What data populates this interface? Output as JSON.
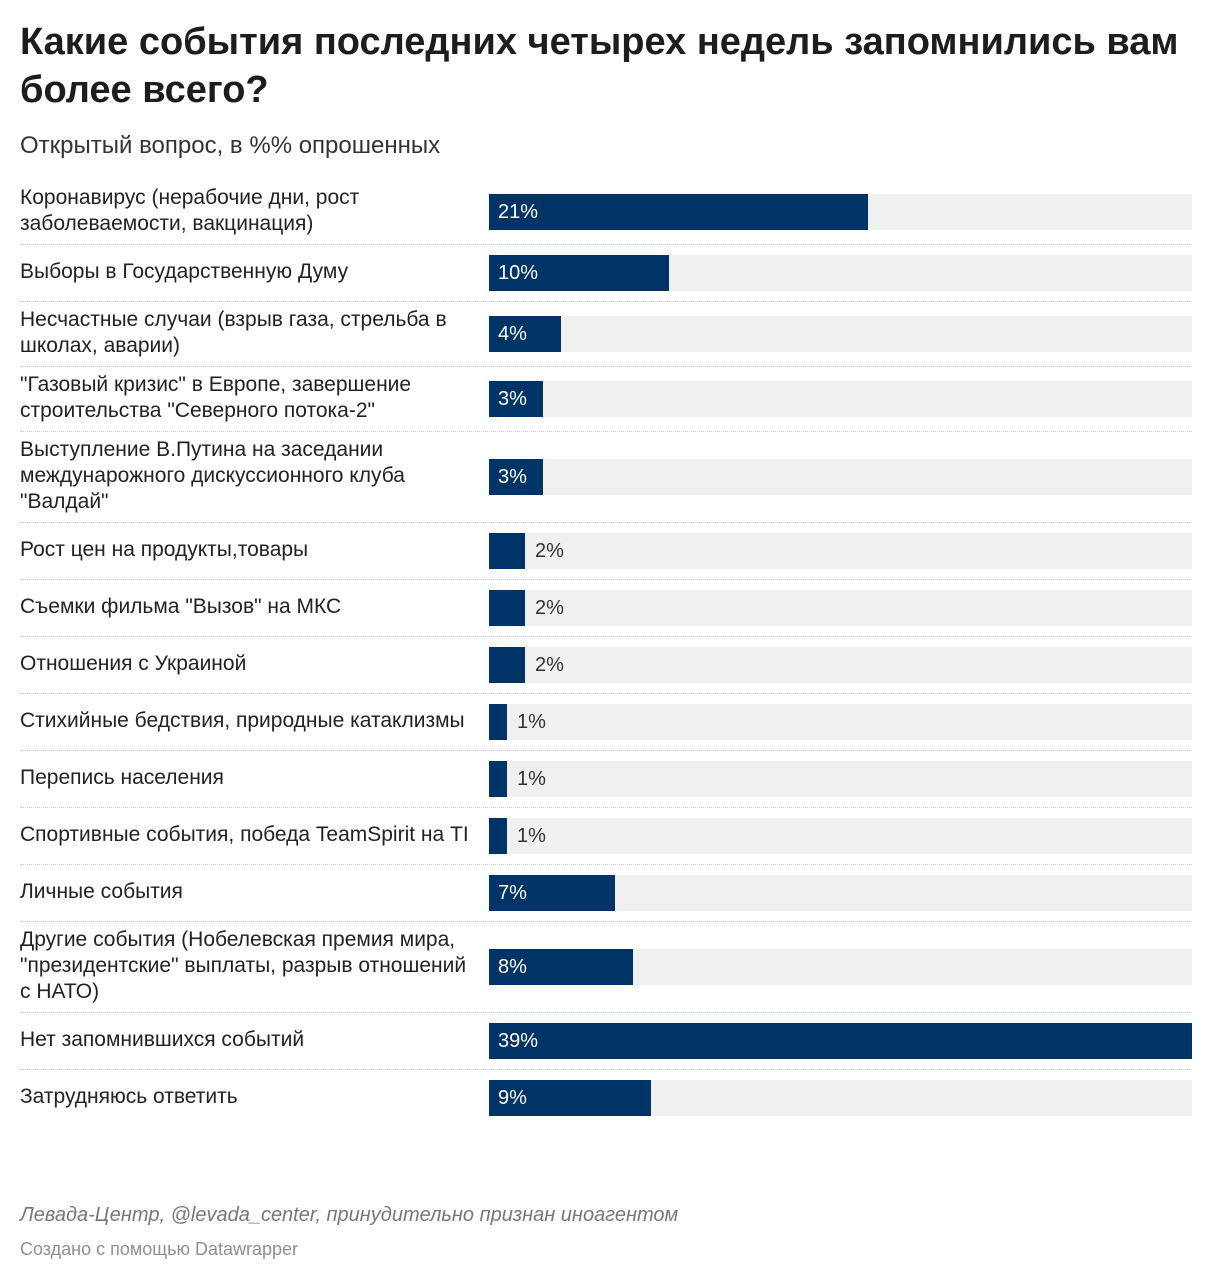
{
  "title": "Какие события последних четырех недель запомнились вам более всего?",
  "subtitle": "Открытый вопрос, в %% опрошенных",
  "source": "Левада-Центр, @levada_center, принудительно признан иноагентом",
  "credit": "Создано с помощью Datawrapper",
  "colors": {
    "bar": "#003366",
    "track": "#f0f0f0"
  },
  "chart_data": {
    "type": "bar",
    "orientation": "horizontal",
    "xlim": [
      0,
      39
    ],
    "grid": false,
    "categories": [
      "Коронавирус (нерабочие дни, рост заболеваемости, вакцинация)",
      "Выборы в Государственную Думу",
      "Несчастные случаи (взрыв газа, стрельба в школах, аварии)",
      "\"Газовый кризис\" в Европе, завершение строительства \"Северного потока-2\"",
      "Выступление В.Путина на заседании междунарожного дискуссионного клуба \"Валдай\"",
      "Рост цен на продукты,товары",
      "Съемки фильма \"Вызов\" на МКС",
      "Отношения с Украиной",
      "Стихийные бедствия, природные катаклизмы",
      "Перепись населения",
      "Спортивные события, победа TeamSpirit на TI",
      "Личные события",
      "Другие события (Нобелевская премия мира, \"президентские\" выплаты, разрыв отношений с НАТО)",
      "Нет запомнившихся событий",
      "Затрудняюсь ответить"
    ],
    "values": [
      21,
      10,
      4,
      3,
      3,
      2,
      2,
      2,
      1,
      1,
      1,
      7,
      8,
      39,
      9
    ],
    "value_labels": [
      "21%",
      "10%",
      "4%",
      "3%",
      "3%",
      "2%",
      "2%",
      "2%",
      "1%",
      "1%",
      "1%",
      "7%",
      "8%",
      "39%",
      "9%"
    ]
  }
}
